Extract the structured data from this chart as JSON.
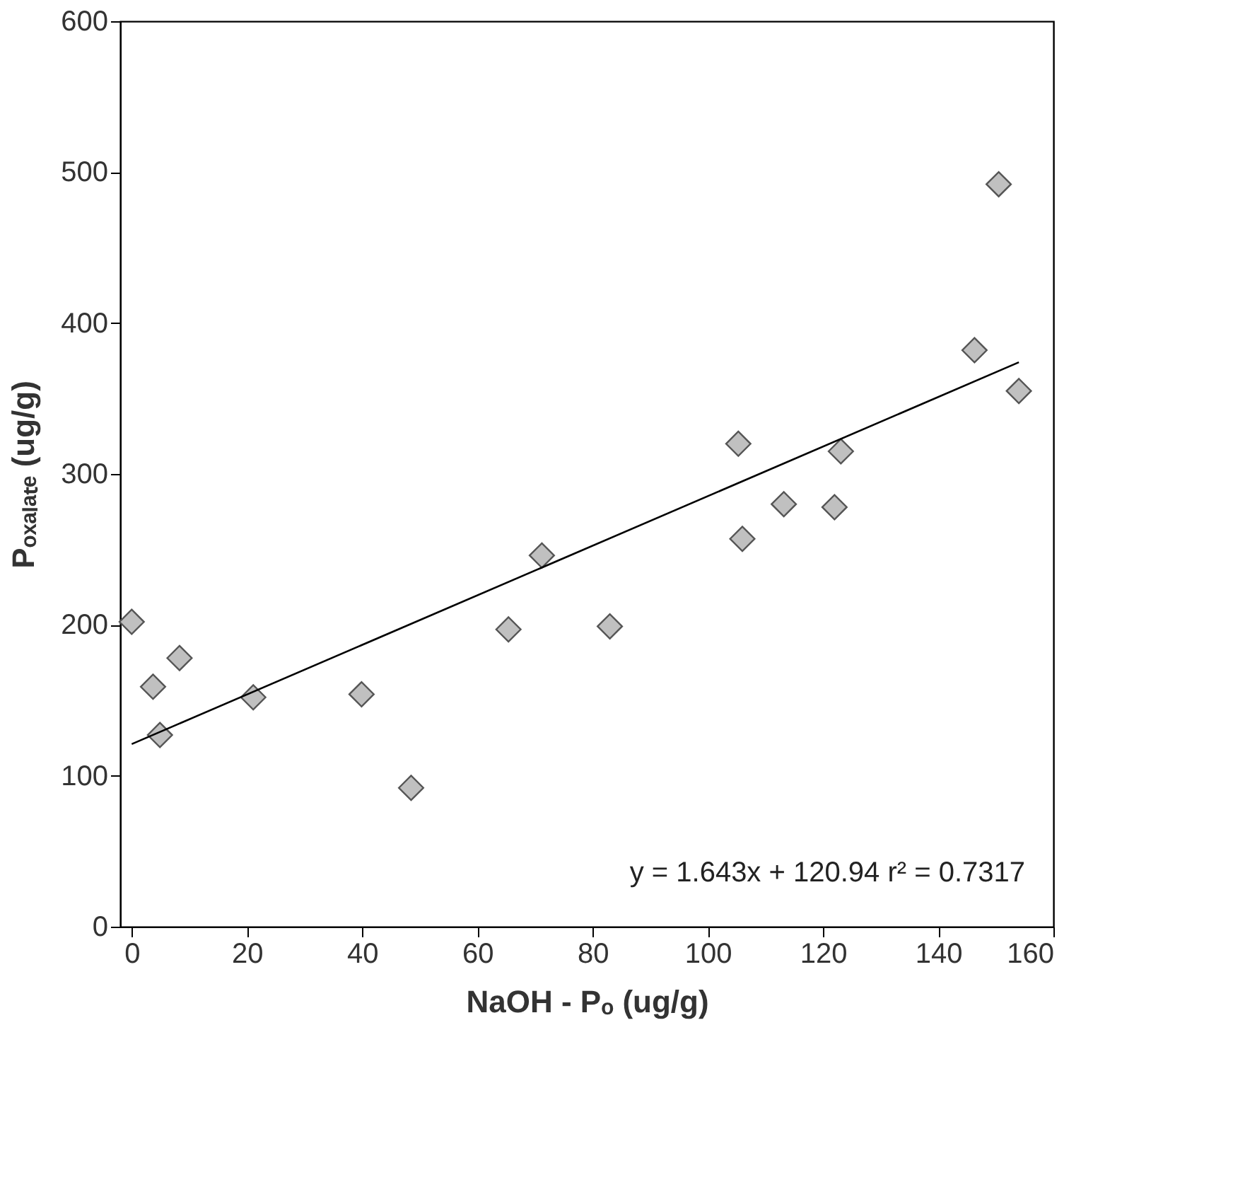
{
  "chart_data": {
    "type": "scatter",
    "xlabel": "NaOH - Pₒ  (ug/g)",
    "ylabel": "Pₒₓₐₗₐₜₑ (ug/g)",
    "xlim": [
      -2,
      160
    ],
    "ylim": [
      0,
      600
    ],
    "xticks": [
      0,
      20,
      40,
      60,
      80,
      100,
      120,
      140,
      160
    ],
    "yticks": [
      0,
      100,
      200,
      300,
      400,
      500,
      600
    ],
    "grid": false,
    "marker": "diamond",
    "series": [
      {
        "color": "#c0c0c0",
        "x": [
          0,
          3.7,
          4.9,
          8.3,
          21.1,
          39.9,
          48.5,
          65.4,
          71.2,
          83,
          105.3,
          106,
          113.2,
          122,
          123.1,
          146.3,
          150.5,
          154
        ],
        "values": [
          202,
          159,
          127,
          178,
          152,
          154,
          92,
          197,
          246,
          199,
          320,
          257,
          280,
          278,
          315,
          382,
          492,
          355
        ]
      },
      {
        "type": "line",
        "color": "#000000",
        "marker": "none",
        "line_style": "solid",
        "x": [
          0,
          154
        ],
        "values": [
          121,
          374
        ]
      }
    ],
    "annotations": [
      "y = 1.643x + 120.94  r² = 0.7317"
    ]
  }
}
